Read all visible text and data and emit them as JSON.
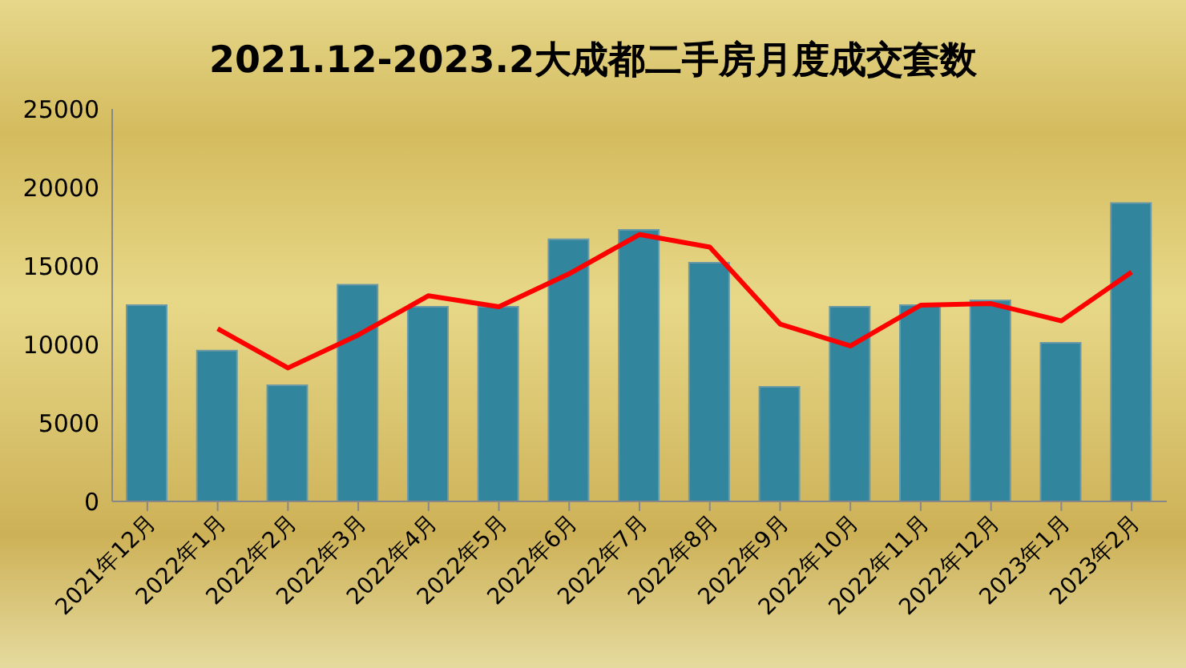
{
  "chart_data": {
    "type": "bar",
    "title": "2021.12-2023.2大成都二手房月度成交套数",
    "categories": [
      "2021年12月",
      "2022年1月",
      "2022年2月",
      "2022年3月",
      "2022年4月",
      "2022年5月",
      "2022年6月",
      "2022年7月",
      "2022年8月",
      "2022年9月",
      "2022年10月",
      "2022年11月",
      "2022年12月",
      "2023年1月",
      "2023年2月"
    ],
    "series": [
      {
        "color": "#31859c",
        "values": [
          12500,
          9600,
          7400,
          13800,
          12400,
          12400,
          16700,
          17300,
          15200,
          7300,
          12400,
          12500,
          12800,
          10100,
          19000
        ]
      },
      {
        "type": "line",
        "color": "#ff0000",
        "values": [
          null,
          11000,
          8500,
          10600,
          13100,
          12400,
          14500,
          17000,
          16200,
          11300,
          9900,
          12500,
          12600,
          11500,
          14600
        ]
      }
    ],
    "ylim": [
      0,
      25000
    ],
    "yticks": [
      0,
      5000,
      10000,
      15000,
      20000,
      25000
    ],
    "grid": false,
    "legend": false,
    "marker": "none",
    "line_style": "solid"
  }
}
